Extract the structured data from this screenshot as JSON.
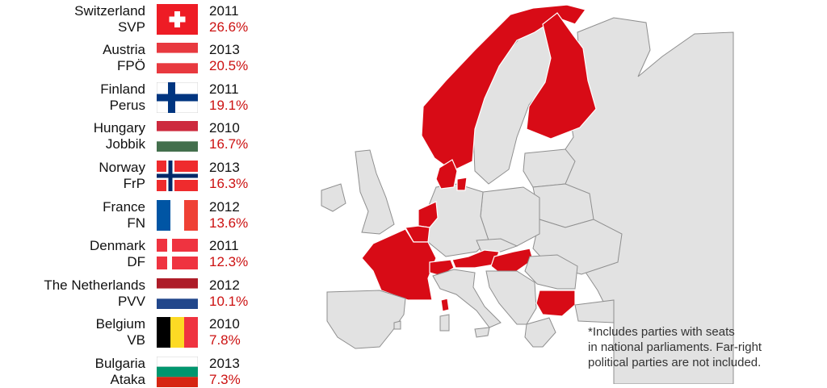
{
  "legend": [
    {
      "country": "Switzerland",
      "party": "SVP",
      "year": "2011",
      "percent": "26.6%",
      "flag": "switzerland-flag"
    },
    {
      "country": "Austria",
      "party": "FPÖ",
      "year": "2013",
      "percent": "20.5%",
      "flag": "austria-flag"
    },
    {
      "country": "Finland",
      "party": "Perus",
      "year": "2011",
      "percent": "19.1%",
      "flag": "finland-flag"
    },
    {
      "country": "Hungary",
      "party": "Jobbik",
      "year": "2010",
      "percent": "16.7%",
      "flag": "hungary-flag"
    },
    {
      "country": "Norway",
      "party": "FrP",
      "year": "2013",
      "percent": "16.3%",
      "flag": "norway-flag"
    },
    {
      "country": "France",
      "party": "FN",
      "year": "2012",
      "percent": "13.6%",
      "flag": "france-flag"
    },
    {
      "country": "Denmark",
      "party": "DF",
      "year": "2011",
      "percent": "12.3%",
      "flag": "denmark-flag"
    },
    {
      "country": "The Netherlands",
      "party": "PVV",
      "year": "2012",
      "percent": "10.1%",
      "flag": "netherlands-flag"
    },
    {
      "country": "Belgium",
      "party": "VB",
      "year": "2010",
      "percent": "7.8%",
      "flag": "belgium-flag"
    },
    {
      "country": "Bulgaria",
      "party": "Ataka",
      "year": "2013",
      "percent": "7.3%",
      "flag": "bulgaria-flag"
    }
  ],
  "map": {
    "highlight_color": "#d80b16",
    "other_color": "#e2e2e2",
    "border_color": "#8f8f8f",
    "highlighted_countries": [
      "Norway",
      "Finland",
      "Denmark",
      "France",
      "Belgium",
      "The Netherlands",
      "Switzerland",
      "Austria",
      "Hungary",
      "Bulgaria"
    ]
  },
  "footnote": "*Includes parties with seats\n in national parliaments. Far-right\n political parties are not included."
}
